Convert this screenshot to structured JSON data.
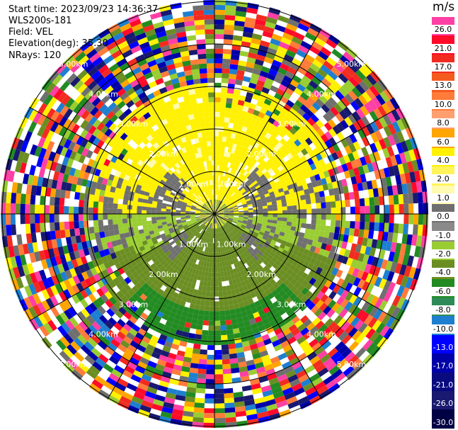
{
  "header": {
    "start_time": "Start time: 2023/09/23 14:36:37",
    "station": "WLS200s-181",
    "field": "Field: VEL",
    "elevation": "Elevation(deg): 35.30",
    "nrays": "NRays: 120"
  },
  "colorbar": {
    "unit": "m/s",
    "ticks": [
      "26.0",
      "21.0",
      "17.0",
      "13.0",
      "10.0",
      "8.0",
      "6.0",
      "4.0",
      "2.0",
      "1.0",
      "0.0",
      "-1.0",
      "-2.0",
      "-4.0",
      "-6.0",
      "-8.0",
      "-10.0",
      "-13.0",
      "-17.0",
      "-21.0",
      "-26.0",
      "-30.0"
    ],
    "colors": [
      "#ff3fa5",
      "#ff0a2a",
      "#f22b20",
      "#f55a1e",
      "#ff7b3a",
      "#ff9f70",
      "#ffa500",
      "#fff100",
      "#fff45a",
      "#fffbb0",
      "#6f6f6f",
      "#8a8a8a",
      "#9acd32",
      "#6b8e23",
      "#228b22",
      "#2e8b57",
      "#1e7fd0",
      "#0000ff",
      "#0000a8",
      "#0a0a80",
      "#191970",
      "#000044"
    ]
  },
  "chart_data": {
    "type": "heatmap",
    "projection": "polar-ppi",
    "field": "VEL",
    "units": "m/s",
    "nrays": 120,
    "range_rings_km": [
      1.0,
      2.0,
      3.0,
      4.0,
      5.0
    ],
    "ring_label": "km",
    "range_labels": [
      "5.00km",
      "4.00km",
      "3.00km",
      "2.00km",
      "1.00km"
    ],
    "colorbar_range": [
      -30.0,
      26.0
    ],
    "pattern": "near-field yellow (positive) to north, olive/green (negative) to south, gray near zero, noise beyond ~3 km"
  }
}
